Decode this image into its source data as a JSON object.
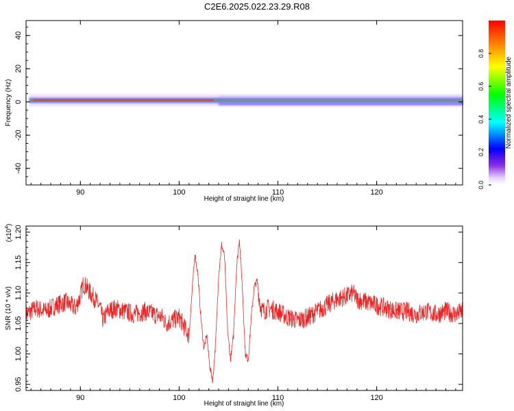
{
  "title": "C2E6.2025.022.23.29.R08",
  "colors": {
    "snr_line": "#ee2222",
    "axis": "#000000",
    "background": "#ffffff"
  },
  "chart_data": [
    {
      "type": "heatmap",
      "xlabel": "Height of straight line (km)",
      "ylabel": "Frequency (Hz)",
      "xlim": [
        84.5,
        128.7
      ],
      "ylim": [
        -50,
        49
      ],
      "xticks": [
        90,
        100,
        110,
        120
      ],
      "yticks": [
        40,
        20,
        0,
        -20,
        -40
      ],
      "grid": false,
      "colorbar": {
        "label": "Normalized spectral amplitude",
        "range": [
          0,
          1
        ],
        "ticks": [
          "0.0",
          "0.2",
          "0.4",
          "0.6",
          "0.8"
        ],
        "colormap": "rainbow (violet-blue-cyan-green-yellow-red, white at 0)"
      },
      "band": {
        "x_start": 84.8,
        "center_frequency_hz": 1,
        "description": "narrow band of high amplitude near 0-2 Hz across all heights, widening after ~104 km"
      }
    },
    {
      "type": "line",
      "xlabel": "Height of straight line (km)",
      "ylabel": "SNR (10 * v/v)",
      "multiplier_label": "(x10",
      "multiplier_exp": "4",
      "multiplier_close": ")",
      "xlim": [
        84.5,
        128.7
      ],
      "ylim": [
        0.94,
        1.21
      ],
      "xticks": [
        90,
        100,
        110,
        120
      ],
      "yticks": [
        "1.20",
        "1.15",
        "1.10",
        "1.05",
        "1.00",
        "0.95"
      ],
      "grid": false,
      "series": [
        {
          "x": [
            84.5,
            85.5,
            86.5,
            87.5,
            88.5,
            89.5,
            90.0,
            90.3,
            90.6,
            91.0,
            91.5,
            92.0,
            92.3,
            92.8,
            93.5,
            94.5,
            95.5,
            96.5,
            97.5,
            98.3,
            98.7,
            99.3,
            100.0,
            100.5,
            101.0,
            101.3,
            101.6,
            101.9,
            102.2,
            102.5,
            102.8,
            103.1,
            103.4,
            103.7,
            104.0,
            104.3,
            104.6,
            104.9,
            105.2,
            105.5,
            105.8,
            106.1,
            106.4,
            106.7,
            107.0,
            107.3,
            107.6,
            107.9,
            108.2,
            108.5,
            109.0,
            110.0,
            111.0,
            112.0,
            113.0,
            114.0,
            115.0,
            116.0,
            117.0,
            117.6,
            118.0,
            119.0,
            120.0,
            121.0,
            122.0,
            123.0,
            124.0,
            125.0,
            126.0,
            127.0,
            128.0,
            128.7
          ],
          "values": [
            1.065,
            1.075,
            1.07,
            1.08,
            1.085,
            1.075,
            1.095,
            1.115,
            1.11,
            1.1,
            1.09,
            1.075,
            1.055,
            1.07,
            1.075,
            1.07,
            1.065,
            1.07,
            1.065,
            1.06,
            1.05,
            1.055,
            1.06,
            1.045,
            1.03,
            1.1,
            1.165,
            1.13,
            1.06,
            1.01,
            1.03,
            0.98,
            0.955,
            1.02,
            1.13,
            1.18,
            1.16,
            1.04,
            0.99,
            1.03,
            1.14,
            1.19,
            1.11,
            1.0,
            0.99,
            1.06,
            1.11,
            1.12,
            1.08,
            1.07,
            1.075,
            1.07,
            1.06,
            1.055,
            1.06,
            1.07,
            1.08,
            1.09,
            1.095,
            1.1,
            1.09,
            1.085,
            1.08,
            1.075,
            1.07,
            1.07,
            1.065,
            1.07,
            1.065,
            1.07,
            1.065,
            1.07
          ]
        }
      ]
    }
  ]
}
